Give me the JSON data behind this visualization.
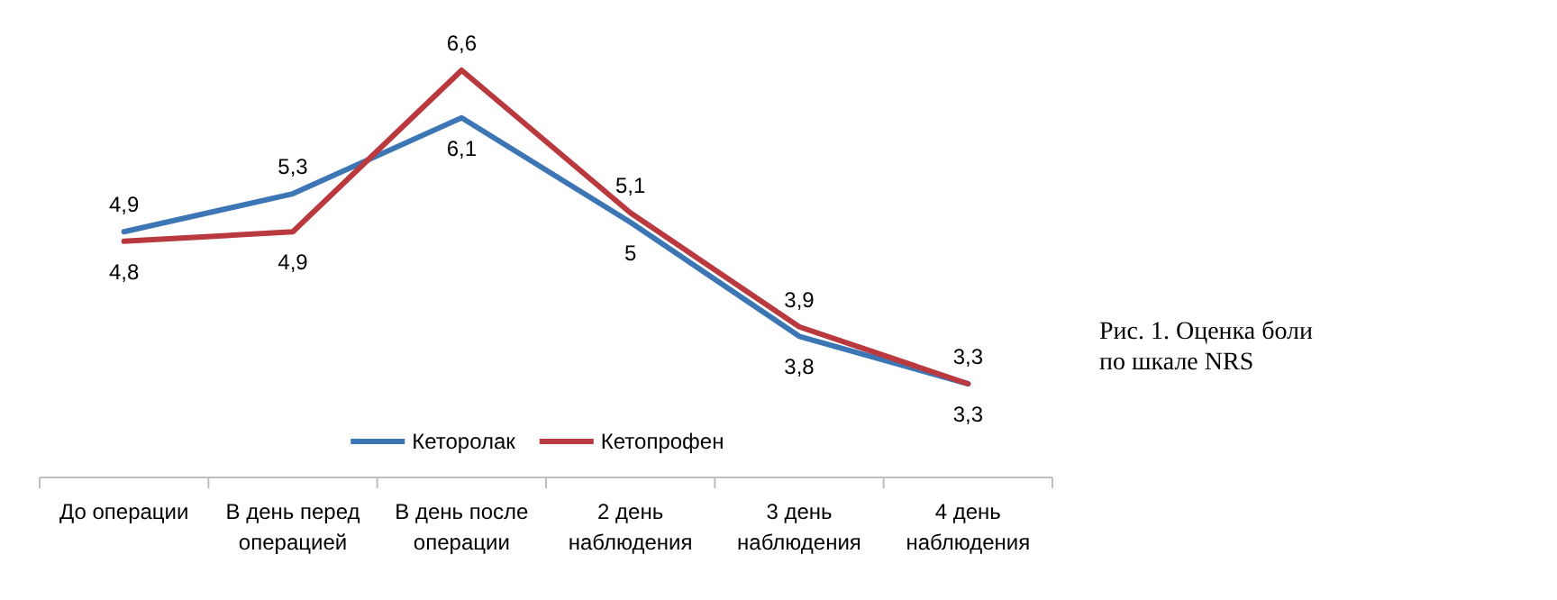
{
  "chart_data": {
    "type": "line",
    "title": "Рис. 1. Оценка боли по шкале NRS",
    "categories": [
      "До операции",
      "В день перед операцией",
      "В день после операции",
      "2 день наблюдения",
      "3 день наблюдения",
      "4 день наблюдения"
    ],
    "series": [
      {
        "name": "Кеторолак",
        "color": "#3c76b5",
        "values": [
          4.9,
          5.3,
          6.1,
          5,
          3.8,
          3.3
        ],
        "value_labels": [
          "4,9",
          "5,3",
          "6,1",
          "5",
          "3,8",
          "3,3"
        ]
      },
      {
        "name": "Кетопрофен",
        "color": "#b9393f",
        "values": [
          4.8,
          4.9,
          6.6,
          5.1,
          3.9,
          3.3
        ],
        "value_labels": [
          "4,8",
          "4,9",
          "6,6",
          "5,1",
          "3,9",
          "3,3"
        ]
      }
    ],
    "legend": "bottom",
    "marker": "none",
    "line_style": "solid"
  }
}
